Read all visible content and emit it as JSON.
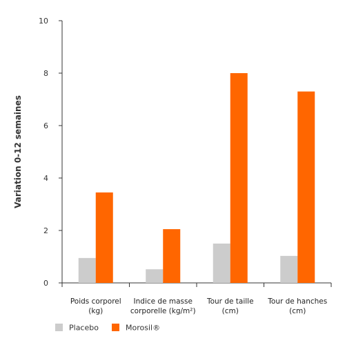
{
  "chart_data": {
    "type": "bar",
    "ylabel": "Variation 0-12 semaines",
    "ylim": [
      0,
      10
    ],
    "yticks": [
      0,
      2,
      4,
      6,
      8,
      10
    ],
    "categories": [
      [
        "Poids corporel",
        "(kg)"
      ],
      [
        "Indice de masse",
        "corporelle (kg/m²)"
      ],
      [
        "Tour de taille",
        "(cm)"
      ],
      [
        "Tour de hanches",
        "(cm)"
      ]
    ],
    "series": [
      {
        "name": "Placebo",
        "color": "#cccccc",
        "values": [
          0.95,
          0.52,
          1.5,
          1.03
        ]
      },
      {
        "name": "Morosil®",
        "color": "#ff6600",
        "values": [
          3.45,
          2.05,
          8.0,
          7.3
        ]
      }
    ],
    "grid": false,
    "legend": "bottom-left"
  }
}
